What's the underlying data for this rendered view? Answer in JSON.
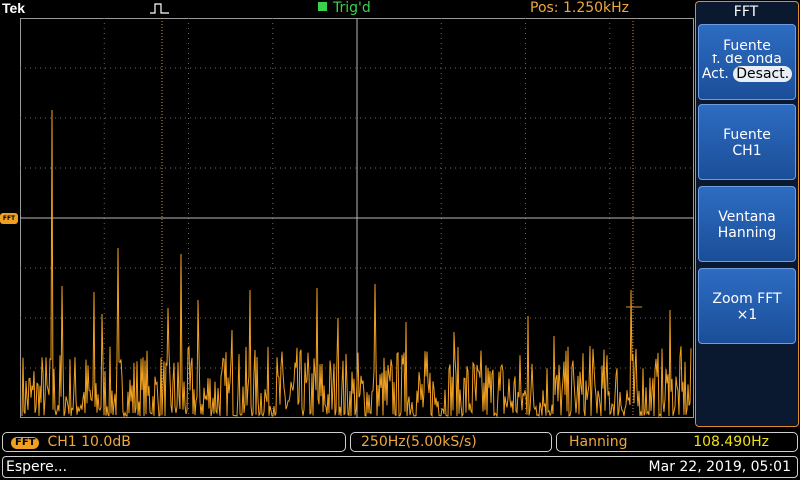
{
  "header": {
    "brand": "Tek",
    "trigger_status": "Trig'd",
    "position": "Pos: 1.250kHz"
  },
  "waveform": {
    "marker_label": "FFT"
  },
  "menu": {
    "title": "FFT",
    "buttons": [
      {
        "line1": "Fuente",
        "line2": "f. de onda",
        "toggle_off": "Act.",
        "toggle_on": "Desact."
      },
      {
        "line1": "Fuente",
        "line2": "CH1"
      },
      {
        "line1": "Ventana",
        "line2": "Hanning"
      },
      {
        "line1": "Zoom FFT",
        "line2": "×1"
      }
    ]
  },
  "status": {
    "fft_badge": "FFT",
    "channel_scale": "CH1  10.0dB",
    "span": "250Hz(5.00kS/s)",
    "window": "Hanning",
    "frequency": "108.490Hz",
    "message": "Espere...",
    "datetime": "Mar 22, 2019, 05:01"
  },
  "colors": {
    "trace": "#f0a020",
    "trigger": "#3ad24a",
    "menu_border": "#e08a2e",
    "button": "#2d6cc2"
  }
}
